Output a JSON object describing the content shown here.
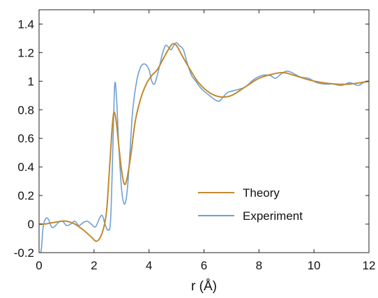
{
  "chart_data": {
    "type": "line",
    "title": "",
    "xlabel": "r (Å)",
    "ylabel": "",
    "xlim": [
      0,
      12
    ],
    "ylim": [
      -0.2,
      1.5
    ],
    "grid": false,
    "legend_position": "lower-right",
    "x_ticks": [
      0,
      2,
      4,
      6,
      8,
      10,
      12
    ],
    "x_tick_labels": [
      "0",
      "2",
      "4",
      "6",
      "8",
      "10",
      "12"
    ],
    "y_ticks": [
      -0.2,
      0,
      0.2,
      0.4,
      0.6,
      0.8,
      1.0,
      1.2,
      1.4
    ],
    "y_tick_labels": [
      "-0.2",
      "0",
      "0.2",
      "0.4",
      "0.6",
      "0.8",
      "1",
      "1.2",
      "1.4"
    ],
    "series": [
      {
        "name": "Theory",
        "color": "#c08a2e",
        "x": [
          0,
          0.2,
          0.5,
          0.8,
          1.0,
          1.3,
          1.6,
          1.9,
          2.1,
          2.3,
          2.45,
          2.55,
          2.65,
          2.72,
          2.8,
          2.9,
          3.0,
          3.1,
          3.2,
          3.35,
          3.5,
          3.7,
          3.9,
          4.1,
          4.3,
          4.5,
          4.7,
          4.85,
          5.0,
          5.2,
          5.5,
          5.8,
          6.2,
          6.6,
          7.0,
          7.5,
          8.0,
          8.5,
          8.9,
          9.3,
          9.8,
          10.3,
          10.8,
          11.3,
          11.7,
          12.0
        ],
        "y": [
          0.0,
          0.0,
          0.01,
          0.02,
          0.02,
          0.0,
          -0.04,
          -0.09,
          -0.12,
          -0.06,
          0.08,
          0.35,
          0.65,
          0.78,
          0.73,
          0.55,
          0.38,
          0.28,
          0.32,
          0.5,
          0.72,
          0.88,
          0.98,
          1.04,
          1.08,
          1.15,
          1.22,
          1.26,
          1.25,
          1.18,
          1.08,
          0.99,
          0.92,
          0.89,
          0.9,
          0.96,
          1.02,
          1.05,
          1.06,
          1.04,
          1.01,
          0.99,
          0.98,
          0.98,
          0.99,
          1.0
        ]
      },
      {
        "name": "Experiment",
        "color": "#6f9fd3",
        "x": [
          0,
          0.08,
          0.15,
          0.25,
          0.35,
          0.45,
          0.55,
          0.7,
          0.85,
          1.0,
          1.15,
          1.3,
          1.45,
          1.6,
          1.75,
          1.9,
          2.05,
          2.2,
          2.3,
          2.4,
          2.5,
          2.6,
          2.68,
          2.75,
          2.82,
          2.9,
          3.0,
          3.1,
          3.2,
          3.3,
          3.4,
          3.55,
          3.7,
          3.85,
          4.0,
          4.1,
          4.2,
          4.3,
          4.4,
          4.5,
          4.6,
          4.7,
          4.8,
          4.9,
          5.0,
          5.1,
          5.25,
          5.4,
          5.55,
          5.7,
          5.85,
          6.0,
          6.2,
          6.4,
          6.55,
          6.7,
          6.85,
          7.0,
          7.2,
          7.5,
          7.8,
          8.1,
          8.4,
          8.6,
          8.8,
          9.0,
          9.2,
          9.5,
          9.8,
          10.1,
          10.4,
          10.7,
          11.0,
          11.3,
          11.6,
          11.8,
          12.0
        ],
        "y": [
          -0.21,
          -0.18,
          -0.02,
          0.04,
          0.03,
          -0.02,
          -0.02,
          0.01,
          0.02,
          -0.01,
          0.0,
          0.02,
          -0.01,
          0.01,
          0.02,
          0.0,
          -0.02,
          0.04,
          0.06,
          0.0,
          -0.04,
          0.02,
          0.5,
          0.97,
          0.88,
          0.55,
          0.25,
          0.14,
          0.22,
          0.48,
          0.78,
          1.0,
          1.1,
          1.12,
          1.08,
          1.0,
          0.98,
          1.04,
          1.12,
          1.2,
          1.25,
          1.24,
          1.22,
          1.25,
          1.27,
          1.25,
          1.22,
          1.12,
          1.04,
          1.0,
          0.96,
          0.93,
          0.9,
          0.87,
          0.86,
          0.89,
          0.92,
          0.93,
          0.94,
          0.96,
          1.01,
          1.04,
          1.04,
          1.02,
          1.05,
          1.07,
          1.06,
          1.03,
          1.02,
          0.99,
          0.98,
          0.98,
          0.97,
          0.99,
          0.97,
          0.99,
          1.0
        ]
      }
    ]
  }
}
